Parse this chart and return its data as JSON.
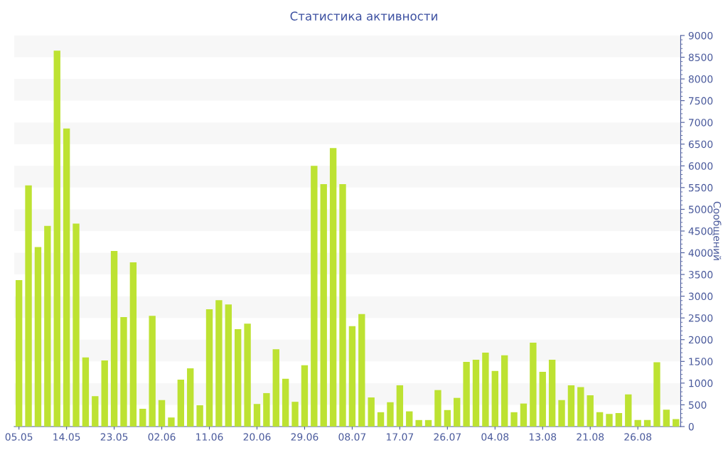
{
  "chart_data": {
    "type": "bar",
    "title": "Статистика активности",
    "ylabel": "Сообщений",
    "categories": [
      "05.05",
      null,
      null,
      null,
      null,
      "14.05",
      null,
      null,
      null,
      null,
      "23.05",
      null,
      null,
      null,
      null,
      "02.06",
      null,
      null,
      null,
      null,
      "11.06",
      null,
      null,
      null,
      null,
      "20.06",
      null,
      null,
      null,
      null,
      "29.06",
      null,
      null,
      null,
      null,
      "08.07",
      null,
      null,
      null,
      null,
      "17.07",
      null,
      null,
      null,
      null,
      "26.07",
      null,
      null,
      null,
      null,
      "04.08",
      null,
      null,
      null,
      null,
      "13.08",
      null,
      null,
      null,
      null,
      "21.08",
      null,
      null,
      null,
      null,
      "26.08",
      null,
      null,
      null,
      null
    ],
    "values": [
      3370,
      5550,
      4130,
      4620,
      8650,
      6860,
      4670,
      1590,
      700,
      1520,
      4040,
      2520,
      3780,
      410,
      2550,
      610,
      210,
      1080,
      1340,
      490,
      2700,
      2910,
      2810,
      2240,
      2370,
      520,
      770,
      1780,
      1100,
      570,
      1410,
      6000,
      5580,
      6410,
      5580,
      2310,
      2590,
      670,
      330,
      560,
      950,
      350,
      150,
      150,
      840,
      380,
      660,
      1490,
      1540,
      1700,
      1280,
      1640,
      330,
      530,
      1930,
      1260,
      1540,
      610,
      950,
      910,
      720,
      330,
      290,
      310,
      740,
      150,
      150,
      1480,
      390,
      170
    ],
    "color": "#bde232",
    "ylim": [
      0,
      9000
    ],
    "yticks": [
      0,
      500,
      1000,
      1500,
      2000,
      2500,
      3000,
      3500,
      4000,
      4500,
      5000,
      5500,
      6000,
      6500,
      7000,
      7500,
      8000,
      8500,
      9000
    ],
    "bands": [
      {
        "axis": "y",
        "from": 8500,
        "to": 9000,
        "color": "#f7f7f7"
      },
      {
        "axis": "y",
        "from": 7500,
        "to": 8000,
        "color": "#f7f7f7"
      },
      {
        "axis": "y",
        "from": 6500,
        "to": 7000,
        "color": "#f7f7f7"
      },
      {
        "axis": "y",
        "from": 5500,
        "to": 6000,
        "color": "#f7f7f7"
      },
      {
        "axis": "y",
        "from": 4500,
        "to": 5000,
        "color": "#f7f7f7"
      },
      {
        "axis": "y",
        "from": 3500,
        "to": 4000,
        "color": "#f7f7f7"
      },
      {
        "axis": "y",
        "from": 2500,
        "to": 3000,
        "color": "#f7f7f7"
      },
      {
        "axis": "y",
        "from": 1500,
        "to": 2000,
        "color": "#f7f7f7"
      },
      {
        "axis": "y",
        "from": 500,
        "to": 1000,
        "color": "#f7f7f7"
      }
    ]
  }
}
